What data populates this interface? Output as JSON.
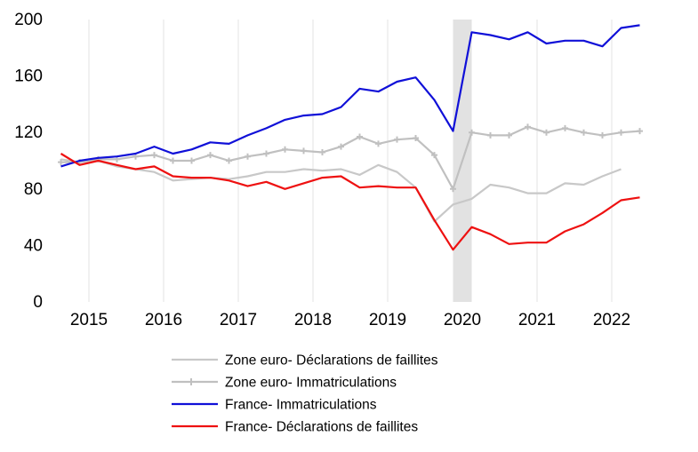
{
  "chart_data": {
    "type": "line",
    "title": "",
    "xlabel": "",
    "ylabel": "",
    "ylim": [
      0,
      200
    ],
    "yticks": [
      0,
      40,
      80,
      120,
      160,
      200
    ],
    "x_start": 2014.625,
    "x_step": 0.25,
    "xlim": [
      2014.5,
      2023.0
    ],
    "year_labels": [
      "2015",
      "2016",
      "2017",
      "2018",
      "2019",
      "2020",
      "2021",
      "2022"
    ],
    "shaded_period": [
      2019.875,
      2020.125
    ],
    "grid": "vertical",
    "legend_position": "bottom",
    "series": [
      {
        "name": "Zone euro- Déclarations de faillites",
        "color": "#c8c8c8",
        "marker": false,
        "values": [
          101,
          99,
          100,
          96,
          94,
          92,
          86,
          87,
          88,
          87,
          89,
          92,
          92,
          94,
          93,
          94,
          90,
          97,
          92,
          81,
          57,
          69,
          73,
          83,
          81,
          77,
          77,
          84,
          83,
          89,
          94
        ]
      },
      {
        "name": "Zone euro- Immatriculations",
        "color": "#c0c0c0",
        "marker": true,
        "values": [
          99,
          99,
          101,
          101,
          103,
          104,
          100,
          100,
          104,
          100,
          103,
          105,
          108,
          107,
          106,
          110,
          117,
          112,
          115,
          116,
          104,
          80,
          120,
          118,
          118,
          124,
          120,
          123,
          120,
          118,
          120,
          121
        ]
      },
      {
        "name": "France- Immatriculations",
        "color": "#1010d8",
        "marker": false,
        "values": [
          96,
          100,
          102,
          103,
          105,
          110,
          105,
          108,
          113,
          112,
          118,
          123,
          129,
          132,
          133,
          138,
          151,
          149,
          156,
          159,
          143,
          121,
          191,
          189,
          186,
          191,
          183,
          185,
          185,
          181,
          194,
          196
        ]
      },
      {
        "name": "France- Déclarations de faillites",
        "color": "#ee1111",
        "marker": false,
        "values": [
          105,
          97,
          100,
          97,
          94,
          96,
          89,
          88,
          88,
          86,
          82,
          85,
          80,
          84,
          88,
          89,
          81,
          82,
          81,
          81,
          58,
          37,
          53,
          48,
          41,
          42,
          42,
          50,
          55,
          63,
          72,
          74
        ]
      }
    ]
  }
}
